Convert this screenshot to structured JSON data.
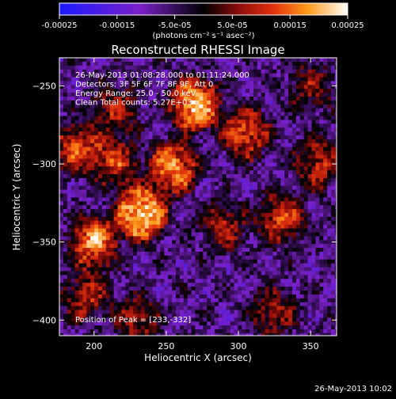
{
  "chart_data": {
    "type": "heatmap",
    "title": "Reconstructed RHESSI Image",
    "xlabel": "Heliocentric X (arcsec)",
    "ylabel": "Heliocentric Y (arcsec)",
    "xlim": [
      176,
      368
    ],
    "ylim": [
      -410,
      -232
    ],
    "xticks": [
      200,
      250,
      300,
      350
    ],
    "yticks": [
      -250,
      -300,
      -350,
      -400
    ],
    "colorbar": {
      "min": -0.00025,
      "max": 0.00025,
      "tick_values": [
        -0.00025,
        -0.00015,
        -5e-05,
        5e-05,
        0.00015,
        0.00025
      ],
      "tick_labels": [
        "-0.00025",
        "-0.00015",
        "-5.0e-05",
        "5.0e-05",
        "0.00015",
        "0.00025"
      ],
      "units_label": "(photons cm⁻² s⁻¹ asec⁻²)"
    },
    "annotations": [
      "26-May-2013 01:08:28.000 to 01:11:24.000",
      "Detectors: 3F 5F 6F 7F 8F 9F, Att 0",
      "Energy Range: 25.0 - 50.0 keV",
      "Clean     Total counts: 5.27E+03"
    ],
    "peak_label": "Position of Peak = [233,-332]",
    "peak_position": [
      233,
      -332
    ],
    "sources": [
      {
        "x": 233,
        "y": -332,
        "value": 0.00025
      },
      {
        "x": 270,
        "y": -262,
        "value": 0.00023
      },
      {
        "x": 255,
        "y": -302,
        "value": 0.00019
      },
      {
        "x": 200,
        "y": -350,
        "value": 0.00018
      },
      {
        "x": 305,
        "y": -280,
        "value": 0.00014
      },
      {
        "x": 188,
        "y": -290,
        "value": 0.00013
      },
      {
        "x": 330,
        "y": -335,
        "value": 0.00012
      },
      {
        "x": 215,
        "y": -300,
        "value": 0.00011
      },
      {
        "x": 355,
        "y": -300,
        "value": 0.0001
      },
      {
        "x": 195,
        "y": -385,
        "value": 9e-05
      },
      {
        "x": 290,
        "y": -340,
        "value": 8e-05
      },
      {
        "x": 325,
        "y": -395,
        "value": 7e-05
      },
      {
        "x": 230,
        "y": -400,
        "value": 7e-05
      },
      {
        "x": 350,
        "y": -250,
        "value": 6e-05
      },
      {
        "x": 215,
        "y": -265,
        "value": 8e-05
      }
    ],
    "background_level": -7e-05,
    "grid": false,
    "legend": "none"
  },
  "footer_timestamp": "26-May-2013 10:02"
}
